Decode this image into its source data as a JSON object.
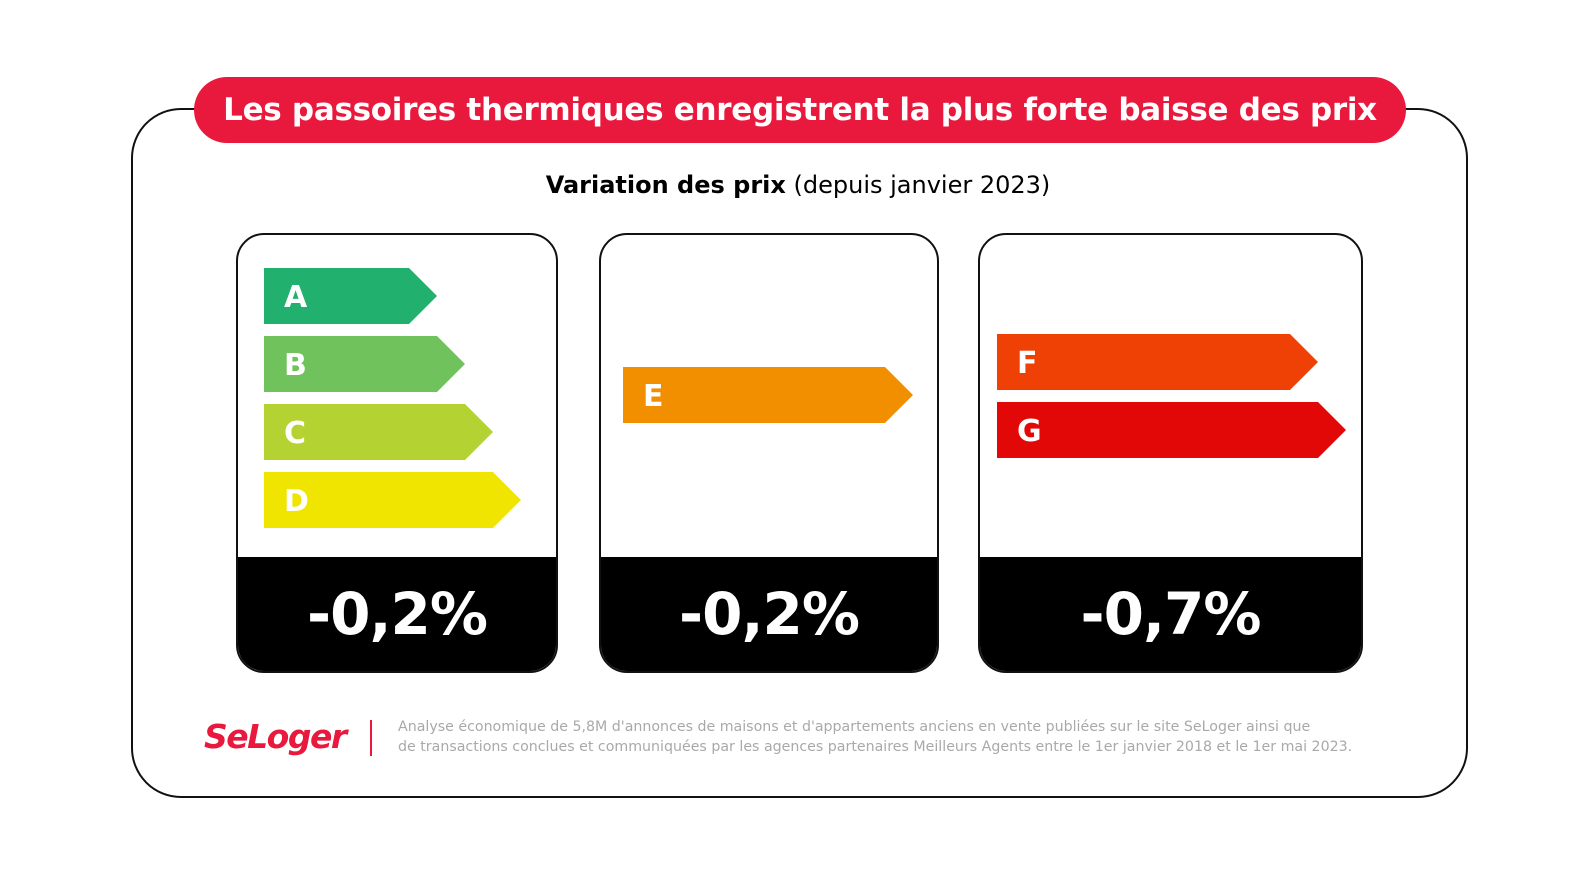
{
  "title": "Les passoires thermiques enregistrent la plus forte baisse des prix",
  "subtitle": {
    "bold": "Variation des prix",
    "normal": "(depuis janvier 2023)"
  },
  "chart_data": {
    "type": "bar",
    "title": "Variation des prix (depuis janvier 2023)",
    "groups": [
      {
        "classes": [
          "A",
          "B",
          "C",
          "D"
        ],
        "value": -0.2,
        "label": "-0,2%"
      },
      {
        "classes": [
          "E"
        ],
        "value": -0.2,
        "label": "-0,2%"
      },
      {
        "classes": [
          "F",
          "G"
        ],
        "value": -0.7,
        "label": "-0,7%"
      }
    ],
    "class_colors": {
      "A": "#21b06e",
      "B": "#70c25c",
      "C": "#b4d332",
      "D": "#f0e500",
      "E": "#f28f00",
      "F": "#ef4106",
      "G": "#e30808"
    }
  },
  "footer": {
    "logo": "SeLoger",
    "note_line1": "Analyse économique de 5,8M d'annonces de maisons et d'appartements anciens en vente publiées sur le site SeLoger ainsi que",
    "note_line2": "de transactions conclues et communiquées par les agences partenaires Meilleurs Agents entre le 1er janvier 2018 et le 1er mai 2023."
  },
  "colors": {
    "brand_red": "#e8193c",
    "value_bar": "#000000"
  }
}
